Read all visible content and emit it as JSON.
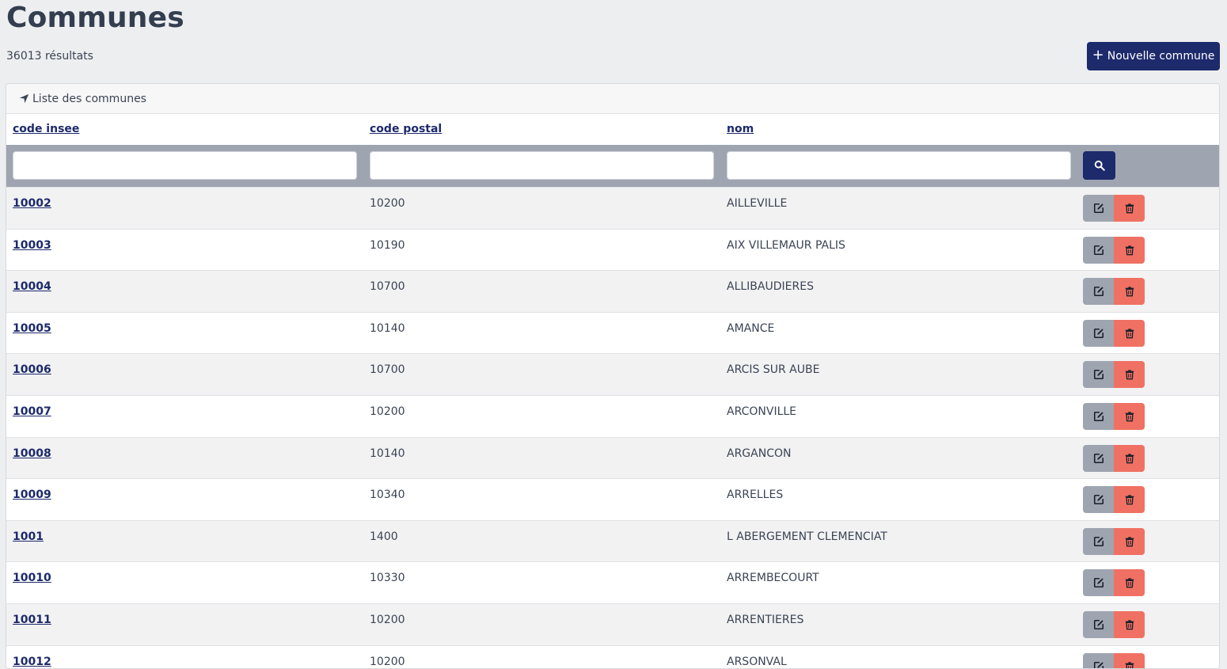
{
  "page": {
    "title": "Communes",
    "result_count": "36013 résultats",
    "new_button_label": "Nouvelle commune"
  },
  "card": {
    "title": "Liste des communes"
  },
  "table": {
    "columns": [
      "code insee",
      "code postal",
      "nom"
    ],
    "rows": [
      {
        "insee": "10002",
        "postal": "10200",
        "nom": "AILLEVILLE"
      },
      {
        "insee": "10003",
        "postal": "10190",
        "nom": "AIX VILLEMAUR PALIS"
      },
      {
        "insee": "10004",
        "postal": "10700",
        "nom": "ALLIBAUDIERES"
      },
      {
        "insee": "10005",
        "postal": "10140",
        "nom": "AMANCE"
      },
      {
        "insee": "10006",
        "postal": "10700",
        "nom": "ARCIS SUR AUBE"
      },
      {
        "insee": "10007",
        "postal": "10200",
        "nom": "ARCONVILLE"
      },
      {
        "insee": "10008",
        "postal": "10140",
        "nom": "ARGANCON"
      },
      {
        "insee": "10009",
        "postal": "10340",
        "nom": "ARRELLES"
      },
      {
        "insee": "1001",
        "postal": "1400",
        "nom": "L ABERGEMENT CLEMENCIAT"
      },
      {
        "insee": "10010",
        "postal": "10330",
        "nom": "ARREMBECOURT"
      },
      {
        "insee": "10011",
        "postal": "10200",
        "nom": "ARRENTIERES"
      },
      {
        "insee": "10012",
        "postal": "10200",
        "nom": "ARSONVAL"
      }
    ]
  },
  "icons": {
    "new_button": "plus-icon",
    "card_header": "location-arrow-icon",
    "search": "search-icon",
    "edit": "edit-icon",
    "delete": "trash-icon"
  },
  "colors": {
    "primary": "#1d2a6b",
    "filter_bar": "#9ea5b1",
    "edit_button": "#9ea5b1",
    "delete_button": "#f07163",
    "background": "#edeef0"
  }
}
